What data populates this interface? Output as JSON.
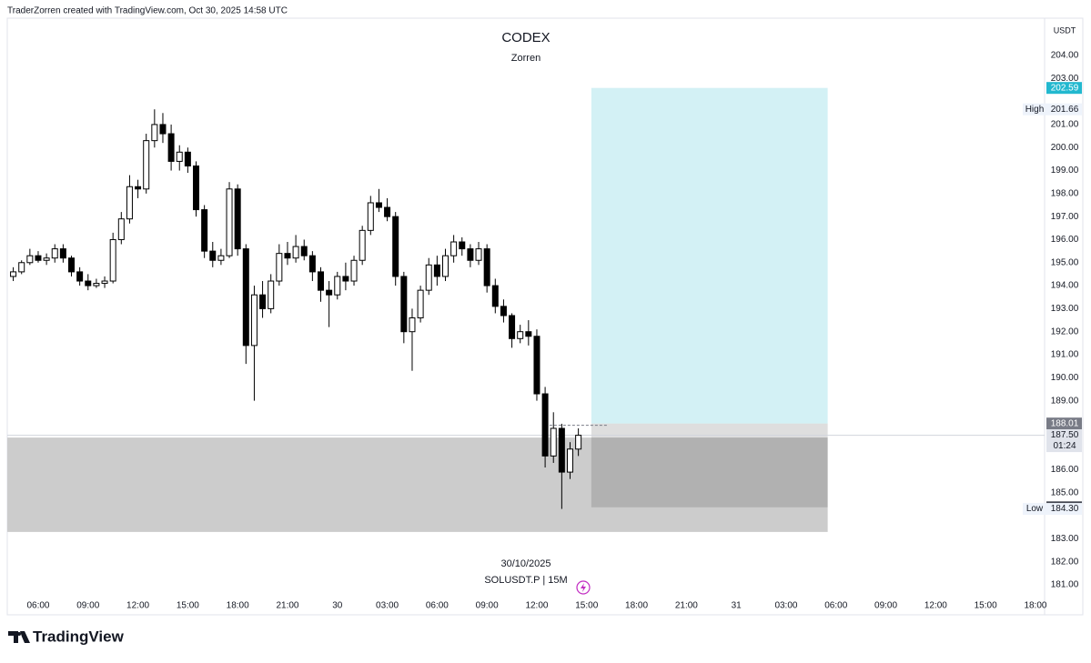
{
  "header": {
    "attribution": "TraderZorren created with TradingView.com, Oct 30, 2025 14:58 UTC",
    "logo": "TradingView"
  },
  "chart_data": {
    "type": "candlestick",
    "title": "CODEX",
    "subtitle": "Zorren",
    "currency": "USDT",
    "date_label": "30/10/2025",
    "symbol_label": "SOLUSDT.P | 15M",
    "x": [
      4.5,
      5,
      5.5,
      6,
      6.5,
      7,
      7.5,
      8,
      8.5,
      9,
      9.5,
      10,
      10.5,
      11,
      11.5,
      12,
      12.5,
      13,
      13.5,
      14,
      14.5,
      15,
      15.5,
      16,
      16.5,
      17,
      17.5,
      18,
      18.5,
      19,
      19.5,
      20,
      20.5,
      21,
      21.5,
      22,
      22.5,
      23,
      23.5,
      24,
      24.5,
      25,
      25.5,
      26,
      26.5,
      27,
      27.5,
      28,
      28.5,
      29,
      29.5,
      30,
      30.5,
      31,
      31.5,
      32,
      32.5,
      33,
      33.5,
      34,
      34.5,
      35,
      35.5,
      36,
      36.5,
      37,
      37.5,
      38,
      38.5
    ],
    "open": [
      194.4,
      194.6,
      195.0,
      195.3,
      195.1,
      195.2,
      195.6,
      195.2,
      194.6,
      194.2,
      194.0,
      194.1,
      194.2,
      196.0,
      196.9,
      198.3,
      198.2,
      200.3,
      201.0,
      200.6,
      199.4,
      199.8,
      199.2,
      197.3,
      195.5,
      195.1,
      195.3,
      198.2,
      195.6,
      191.4,
      193.6,
      193.0,
      194.2,
      195.4,
      195.2,
      195.7,
      195.3,
      194.6,
      193.8,
      193.6,
      194.4,
      194.2,
      195.1,
      196.4,
      197.6,
      197.4,
      197.0,
      194.4,
      192.0,
      192.6,
      193.8,
      194.9,
      194.4,
      195.3,
      195.9,
      195.6,
      195.1,
      195.6,
      194.0,
      193.1,
      192.7,
      191.7,
      192.0,
      191.8,
      189.3,
      186.6,
      187.8,
      185.9,
      186.9
    ],
    "high": [
      194.8,
      195.1,
      195.6,
      195.5,
      195.4,
      195.8,
      195.8,
      195.3,
      194.8,
      194.5,
      194.3,
      194.4,
      196.3,
      197.2,
      198.8,
      198.6,
      200.6,
      201.66,
      201.5,
      201.0,
      200.1,
      200.0,
      199.4,
      197.5,
      195.9,
      195.6,
      198.5,
      198.4,
      195.8,
      194.0,
      194.2,
      194.5,
      195.8,
      195.9,
      196.2,
      196.0,
      195.5,
      194.8,
      194.2,
      194.6,
      195.0,
      195.3,
      196.6,
      197.9,
      198.2,
      197.8,
      197.2,
      194.6,
      193.0,
      194.0,
      195.2,
      195.3,
      195.6,
      196.2,
      196.1,
      195.8,
      195.9,
      195.8,
      194.3,
      193.4,
      192.8,
      192.3,
      192.5,
      192.1,
      189.6,
      188.5,
      188.0,
      187.2,
      187.8
    ],
    "low": [
      194.2,
      194.5,
      194.9,
      195.0,
      194.9,
      195.0,
      195.0,
      194.4,
      194.0,
      193.8,
      193.9,
      193.9,
      194.1,
      195.8,
      196.7,
      197.8,
      198.0,
      200.0,
      200.2,
      199.0,
      199.0,
      198.9,
      197.0,
      195.2,
      194.8,
      194.9,
      195.2,
      195.3,
      190.6,
      189.0,
      192.6,
      192.8,
      194.0,
      194.9,
      195.0,
      195.1,
      194.2,
      193.3,
      192.2,
      193.4,
      193.8,
      194.0,
      194.9,
      196.2,
      197.2,
      196.8,
      194.0,
      191.5,
      190.3,
      192.4,
      193.6,
      194.0,
      194.2,
      195.0,
      195.3,
      194.8,
      194.9,
      193.7,
      192.8,
      192.4,
      191.3,
      191.5,
      191.4,
      189.0,
      186.1,
      186.3,
      184.3,
      185.6,
      186.6
    ],
    "close": [
      194.6,
      195.0,
      195.3,
      195.1,
      195.2,
      195.6,
      195.2,
      194.6,
      194.2,
      194.0,
      194.1,
      194.2,
      196.0,
      196.9,
      198.3,
      198.2,
      200.3,
      201.0,
      200.6,
      199.4,
      199.8,
      199.2,
      197.3,
      195.5,
      195.1,
      195.3,
      198.2,
      195.6,
      191.4,
      193.6,
      193.0,
      194.2,
      195.4,
      195.2,
      195.7,
      195.3,
      194.6,
      193.8,
      193.6,
      194.4,
      194.2,
      195.1,
      196.4,
      197.6,
      197.4,
      197.0,
      194.4,
      192.0,
      192.6,
      193.8,
      194.9,
      194.4,
      195.3,
      195.9,
      195.6,
      195.1,
      195.6,
      194.0,
      193.1,
      192.7,
      191.7,
      192.0,
      191.8,
      189.3,
      186.6,
      187.8,
      185.9,
      186.9,
      187.5
    ],
    "up_color": "#ffffff",
    "down_color": "#000000",
    "xlim": [
      4.14,
      66.55
    ],
    "xticks": [
      {
        "value": 6,
        "label": "06:00"
      },
      {
        "value": 9,
        "label": "09:00"
      },
      {
        "value": 12,
        "label": "12:00"
      },
      {
        "value": 15,
        "label": "15:00"
      },
      {
        "value": 18,
        "label": "18:00"
      },
      {
        "value": 21,
        "label": "21:00"
      },
      {
        "value": 24,
        "label": "30"
      },
      {
        "value": 27,
        "label": "03:00"
      },
      {
        "value": 30,
        "label": "06:00"
      },
      {
        "value": 33,
        "label": "09:00"
      },
      {
        "value": 36,
        "label": "12:00"
      },
      {
        "value": 39,
        "label": "15:00"
      },
      {
        "value": 42,
        "label": "18:00"
      },
      {
        "value": 45,
        "label": "21:00"
      },
      {
        "value": 48,
        "label": "31"
      },
      {
        "value": 51,
        "label": "03:00"
      },
      {
        "value": 54,
        "label": "06:00"
      },
      {
        "value": 57,
        "label": "09:00"
      },
      {
        "value": 60,
        "label": "12:00"
      },
      {
        "value": 63,
        "label": "15:00"
      },
      {
        "value": 66,
        "label": "18:00"
      }
    ],
    "ylim": [
      179.7,
      205.62
    ],
    "yticks": [
      {
        "value": 204,
        "label": "204.00"
      },
      {
        "value": 203,
        "label": "203.00"
      },
      {
        "value": 201,
        "label": "201.00"
      },
      {
        "value": 200,
        "label": "200.00"
      },
      {
        "value": 199,
        "label": "199.00"
      },
      {
        "value": 198,
        "label": "198.00"
      },
      {
        "value": 197,
        "label": "197.00"
      },
      {
        "value": 196,
        "label": "196.00"
      },
      {
        "value": 195,
        "label": "195.00"
      },
      {
        "value": 194,
        "label": "194.00"
      },
      {
        "value": 193,
        "label": "193.00"
      },
      {
        "value": 192,
        "label": "192.00"
      },
      {
        "value": 191,
        "label": "191.00"
      },
      {
        "value": 190,
        "label": "190.00"
      },
      {
        "value": 189,
        "label": "189.00"
      },
      {
        "value": 186,
        "label": "186.00"
      },
      {
        "value": 185,
        "label": "185.00"
      },
      {
        "value": 183,
        "label": "183.00"
      },
      {
        "value": 182,
        "label": "182.00"
      },
      {
        "value": 181,
        "label": "181.00"
      }
    ],
    "high_marker": {
      "name": "High",
      "value": 201.66
    },
    "low_marker": {
      "name": "Low",
      "value": 184.3,
      "label": "184.30"
    },
    "last_price": {
      "value": 187.5,
      "label": "187.50",
      "countdown": "01:24"
    },
    "position": {
      "entry": 188.01,
      "target": 202.59,
      "stop": 184.37,
      "x": [
        39.28,
        53.5
      ],
      "target_color": "#d3f1f5",
      "stop_color": "#000000",
      "target_tag_color": "#22b8cf"
    },
    "zone": {
      "top": 187.4,
      "bottom": 183.3,
      "x": [
        4.14,
        53.5
      ],
      "color": "#cccccc"
    }
  }
}
